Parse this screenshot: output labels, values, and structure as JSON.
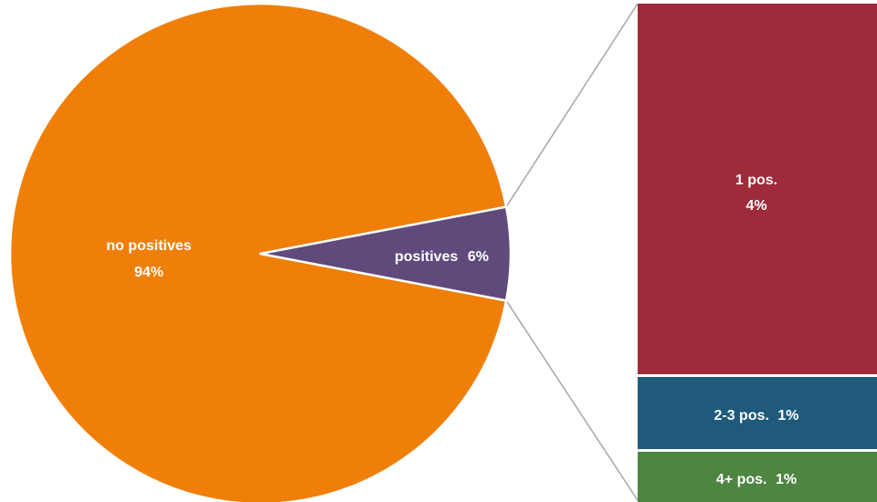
{
  "chart_data": {
    "type": "pie",
    "subtype": "bar-of-pie",
    "slices": [
      {
        "label": "no positives",
        "value_label": "94%",
        "value": 94,
        "color": "#F07F09"
      },
      {
        "label": "positives",
        "value_label": "6%",
        "value": 6,
        "color": "#604A7B"
      }
    ],
    "breakdown_of": "positives",
    "breakdown": [
      {
        "label": "1 pos.",
        "value_label": "4%",
        "value": 4,
        "color": "#9E2A3A"
      },
      {
        "label": "2-3 pos.",
        "value_label": "1%",
        "value": 1,
        "color": "#1F5A7A"
      },
      {
        "label": "4+ pos.",
        "value_label": "1%",
        "value": 1,
        "color": "#4E8542"
      }
    ],
    "connector_color": "#A6A6A6",
    "border_color": "#FFFFFF"
  }
}
